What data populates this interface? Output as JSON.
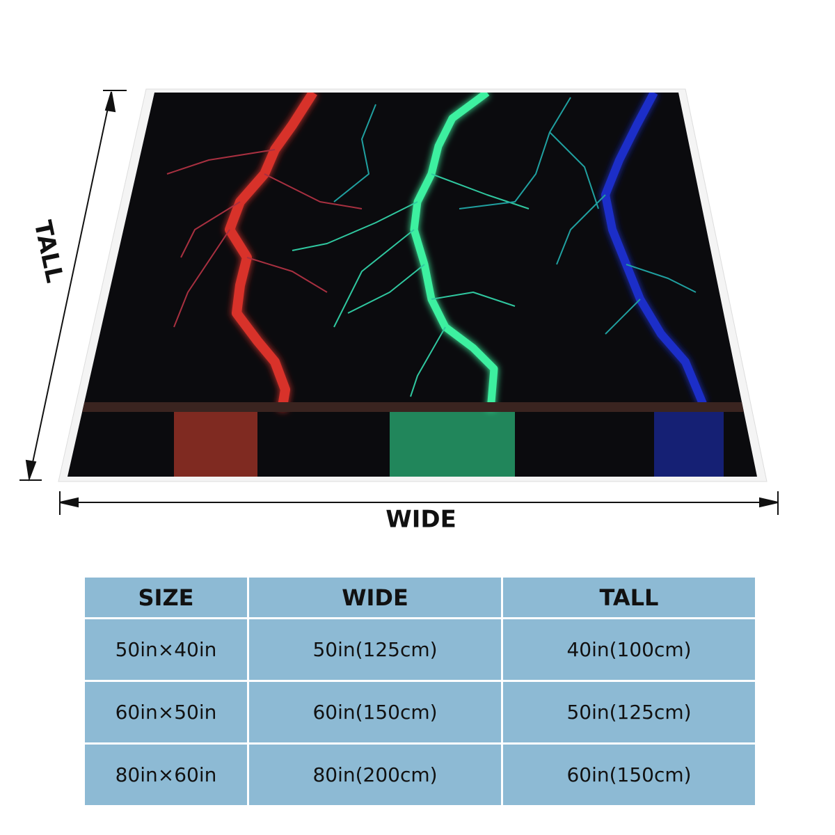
{
  "diagram": {
    "tall_label": "TALL",
    "wide_label": "WIDE"
  },
  "table": {
    "header": [
      "SIZE",
      "WIDE",
      "TALL"
    ],
    "rows": [
      [
        "50in×40in",
        "50in(125cm)",
        "40in(100cm)"
      ],
      [
        "60in×50in",
        "60in(150cm)",
        "50in(125cm)"
      ],
      [
        "80in×60in",
        "80in(200cm)",
        "60in(150cm)"
      ]
    ]
  }
}
